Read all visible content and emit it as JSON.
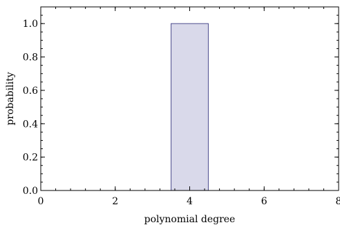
{
  "chart_data": {
    "type": "bar",
    "title": "",
    "xlabel": "polynomial degree",
    "ylabel": "probability",
    "xlim": [
      0,
      8
    ],
    "ylim": [
      0,
      1.1
    ],
    "x_ticks": [
      0,
      2,
      4,
      6,
      8
    ],
    "x_tick_labels": [
      "0",
      "2",
      "4",
      "6",
      "8"
    ],
    "y_ticks": [
      0.0,
      0.2,
      0.4,
      0.6,
      0.8,
      1.0
    ],
    "y_tick_labels": [
      "0.0",
      "0.2",
      "0.4",
      "0.6",
      "0.8",
      "1.0"
    ],
    "bins": [
      {
        "x0": 3.5,
        "x1": 4.5,
        "value": 1.0
      }
    ],
    "colors": {
      "bar_fill": "#d9d9ea",
      "bar_stroke": "#4a4a8c",
      "axis": "#000000"
    },
    "grid": false
  }
}
